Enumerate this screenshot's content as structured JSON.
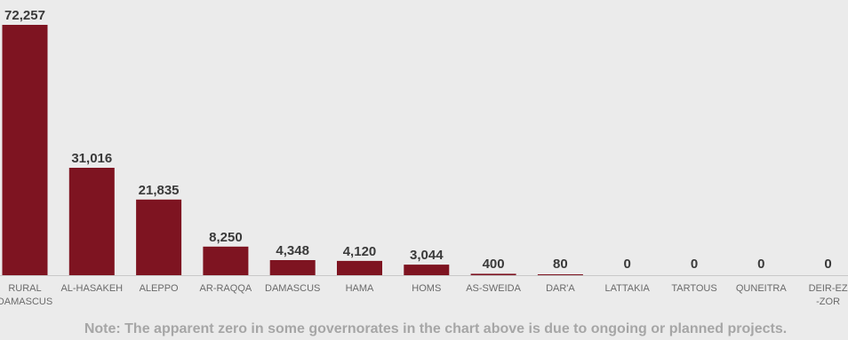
{
  "chart_data": {
    "type": "bar",
    "categories": [
      [
        "RURAL",
        "DAMASCUS"
      ],
      [
        "AL-HASAKEH"
      ],
      [
        "ALEPPO"
      ],
      [
        "AR-RAQQA"
      ],
      [
        "DAMASCUS"
      ],
      [
        "HAMA"
      ],
      [
        "HOMS"
      ],
      [
        "AS-SWEIDA"
      ],
      [
        "DAR'A"
      ],
      [
        "LATTAKIA"
      ],
      [
        "TARTOUS"
      ],
      [
        "QUNEITRA"
      ],
      [
        "DEIR-EZ",
        "-ZOR"
      ]
    ],
    "values": [
      72257,
      31016,
      21835,
      8250,
      4348,
      4120,
      3044,
      400,
      80,
      0,
      0,
      0,
      0
    ],
    "value_labels": [
      "72,257",
      "31,016",
      "21,835",
      "8,250",
      "4,348",
      "4,120",
      "3,044",
      "400",
      "80",
      "0",
      "0",
      "0",
      "0"
    ],
    "bar_color": "#7e1421",
    "axis_color": "#c8c8c8",
    "ylim": [
      0,
      72257
    ],
    "grid": false,
    "legend": "none"
  },
  "note": "Note: The apparent zero in some governorates in the chart above is due to ongoing or planned projects."
}
